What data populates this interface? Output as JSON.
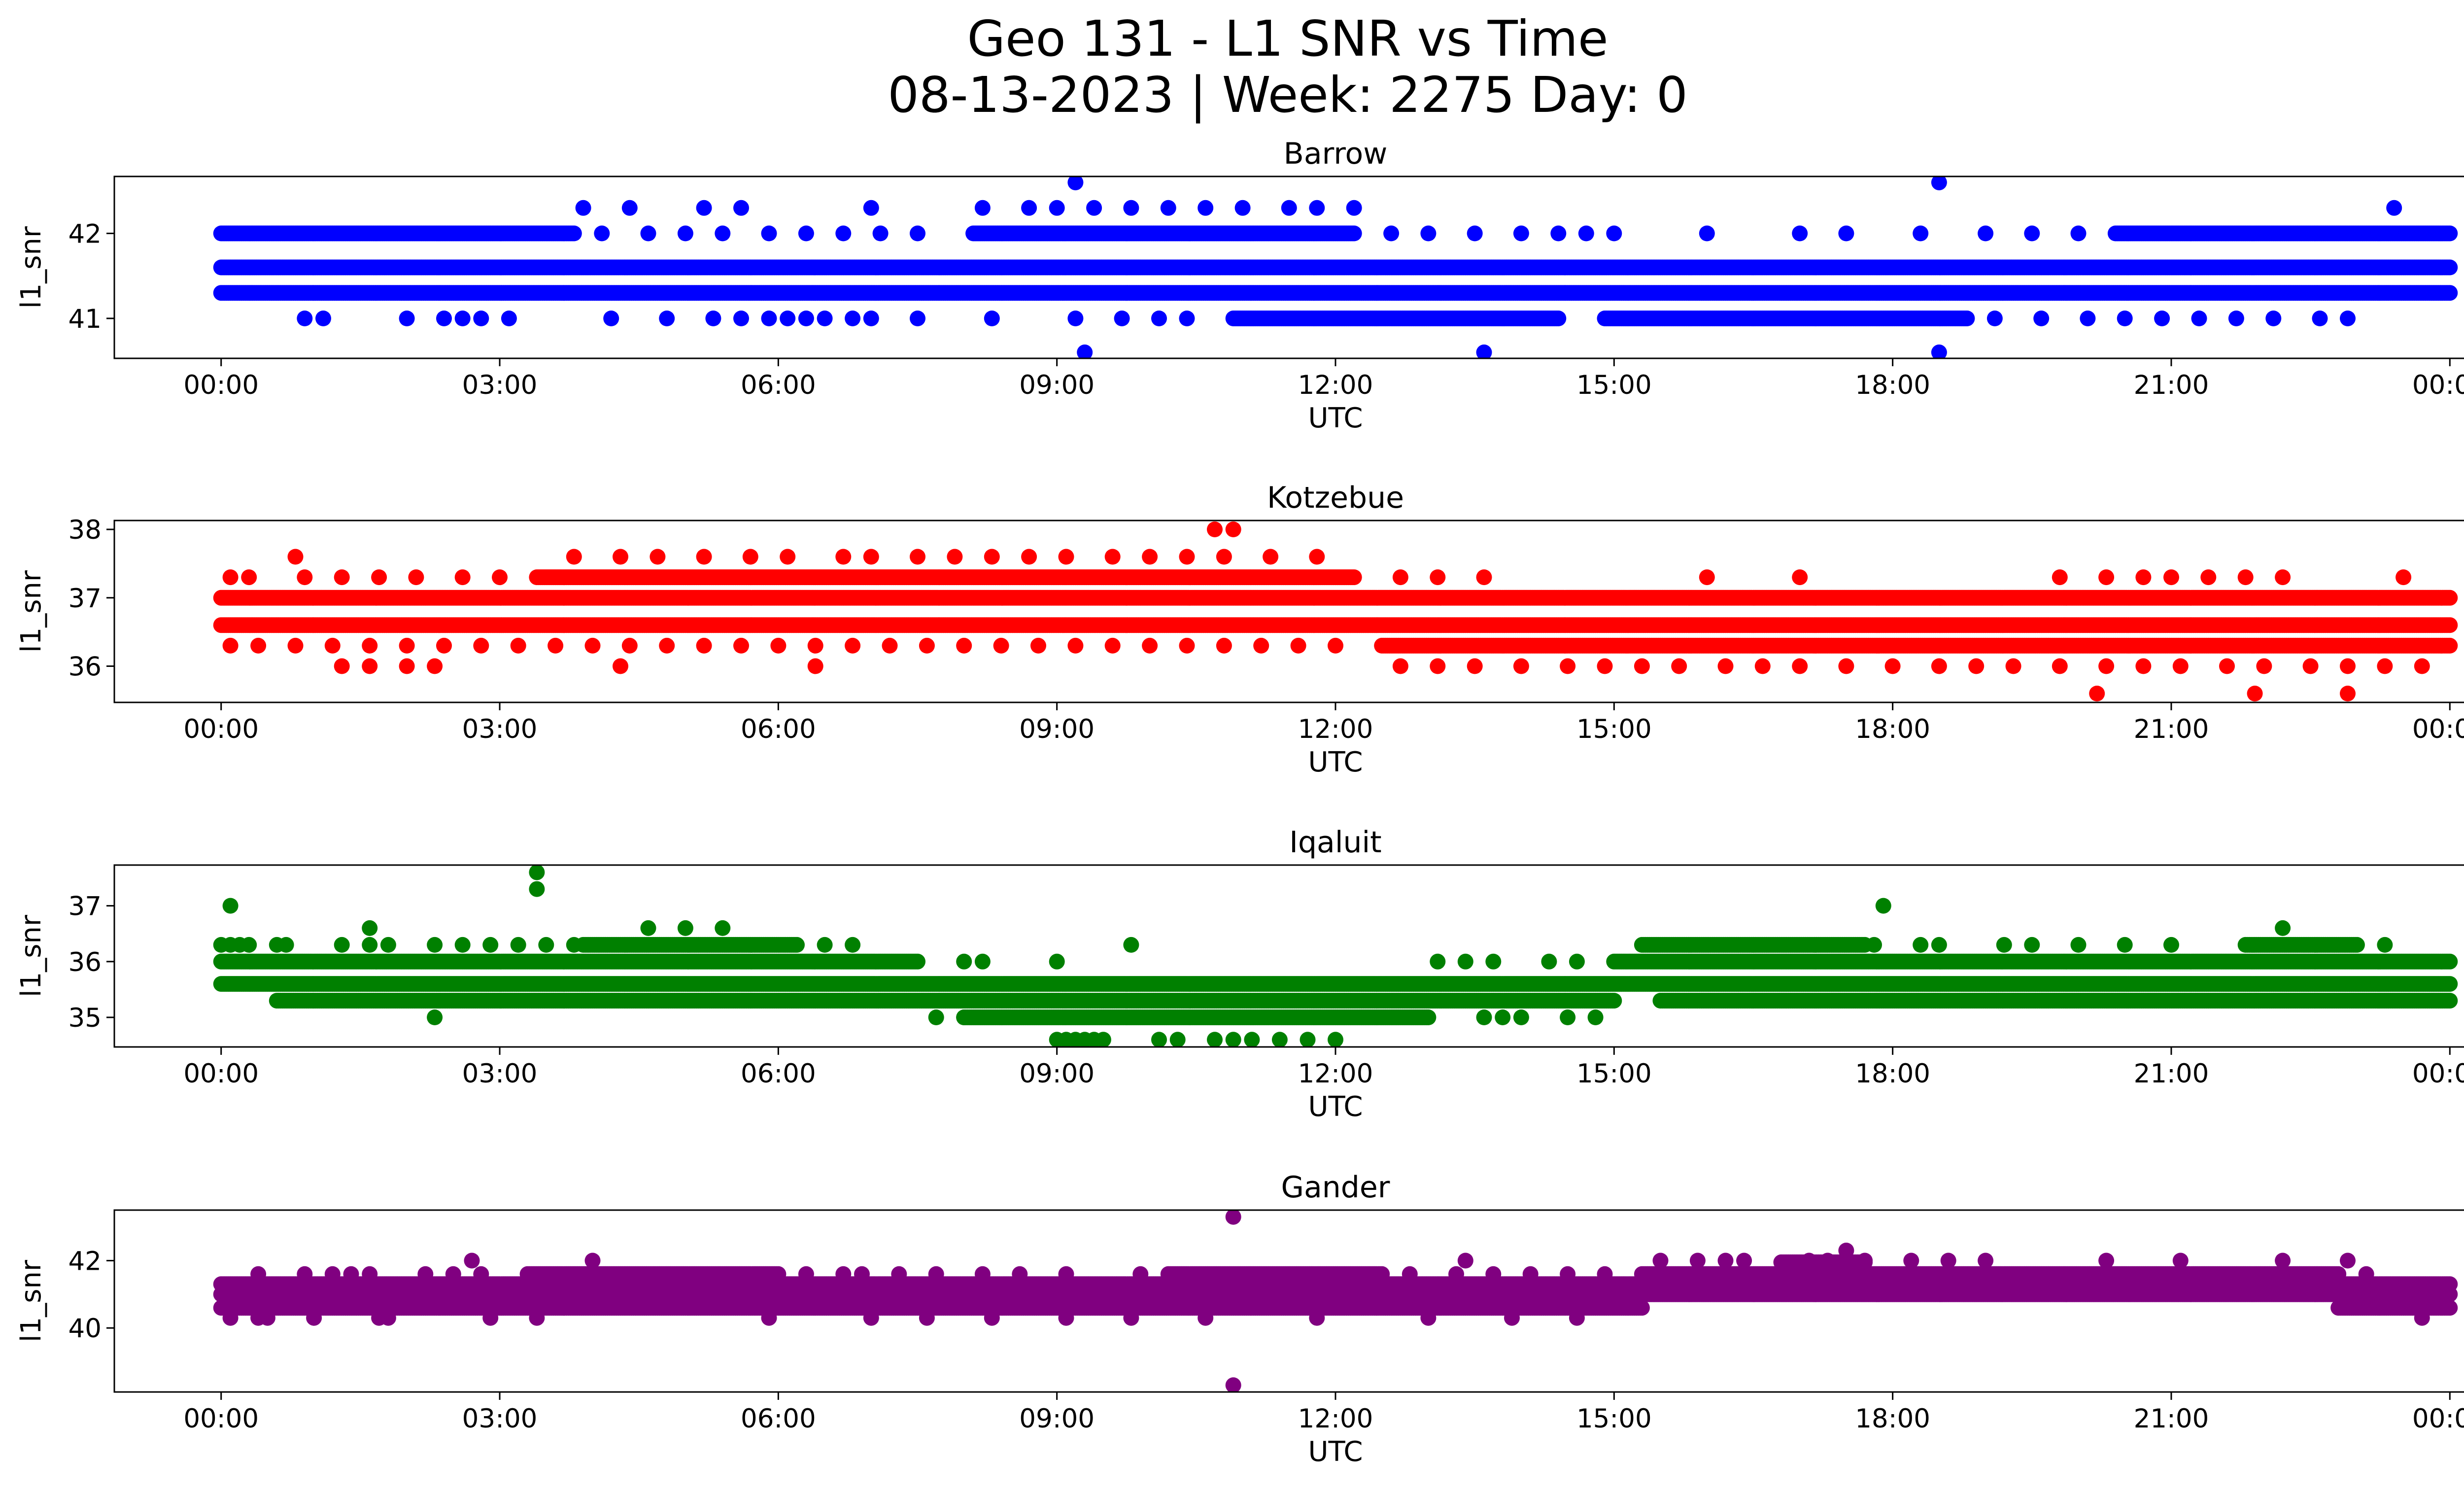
{
  "title": "Geo 131 - L1 SNR vs Time",
  "subtitle": "08-13-2023 | Week: 2275 Day: 0",
  "chart_data": [
    {
      "type": "scatter",
      "title": "Barrow",
      "xlabel": "UTC",
      "ylabel": "l1_snr",
      "color": "#0000ff",
      "xticks": [
        "00:00",
        "03:00",
        "06:00",
        "09:00",
        "12:00",
        "15:00",
        "18:00",
        "21:00",
        "00:00"
      ],
      "xlim_hours": [
        -1.15,
        25.15
      ],
      "ylim": [
        40.53,
        42.67
      ],
      "yticks": [
        41,
        42
      ],
      "levels": [
        40.6,
        41.0,
        41.3,
        41.6,
        42.0,
        42.3,
        42.6
      ],
      "bands": [
        {
          "y": 41.6,
          "ranges": [
            [
              0,
              24
            ]
          ]
        },
        {
          "y": 41.3,
          "ranges": [
            [
              0,
              24
            ]
          ]
        },
        {
          "y": 42.0,
          "ranges": [
            [
              0,
              3.8
            ],
            [
              8.1,
              12.2
            ],
            [
              20.4,
              24
            ]
          ]
        },
        {
          "y": 41.0,
          "ranges": [
            [
              10.9,
              14.4
            ],
            [
              14.9,
              18.8
            ]
          ]
        }
      ],
      "scatter": [
        {
          "y": 42.0,
          "x": [
            4.1,
            4.6,
            5.0,
            5.4,
            5.9,
            6.3,
            6.7,
            7.1,
            7.5,
            12.6,
            13.0,
            13.5,
            14.0,
            14.4,
            14.7,
            15.0,
            16.0,
            17.0,
            17.5,
            18.3,
            19.0,
            19.5,
            20.0
          ]
        },
        {
          "y": 41.0,
          "x": [
            0.9,
            1.1,
            2.0,
            2.4,
            2.6,
            2.8,
            3.1,
            4.2,
            4.8,
            5.3,
            5.6,
            5.9,
            6.1,
            6.3,
            6.5,
            6.8,
            7.0,
            7.5,
            8.3,
            9.2,
            9.7,
            10.1,
            10.4,
            19.1,
            19.6,
            20.1,
            20.5,
            20.9,
            21.3,
            21.7,
            22.1,
            22.6,
            22.9
          ]
        },
        {
          "y": 42.3,
          "x": [
            3.9,
            4.4,
            5.2,
            5.6,
            7.0,
            8.2,
            8.7,
            9.0,
            9.4,
            9.8,
            10.2,
            10.6,
            11.0,
            11.5,
            11.8,
            12.2,
            23.4
          ]
        },
        {
          "y": 42.6,
          "x": [
            9.2,
            18.5
          ]
        },
        {
          "y": 40.6,
          "x": [
            9.3,
            13.6,
            18.5
          ]
        }
      ]
    },
    {
      "type": "scatter",
      "title": "Kotzebue",
      "xlabel": "UTC",
      "ylabel": "l1_snr",
      "color": "#ff0000",
      "xticks": [
        "00:00",
        "03:00",
        "06:00",
        "09:00",
        "12:00",
        "15:00",
        "18:00",
        "21:00",
        "00:00"
      ],
      "xlim_hours": [
        -1.15,
        25.15
      ],
      "ylim": [
        35.47,
        38.13
      ],
      "yticks": [
        36,
        37,
        38
      ],
      "levels": [
        35.6,
        36.0,
        36.3,
        36.6,
        37.0,
        37.3,
        37.6,
        38.0
      ],
      "bands": [
        {
          "y": 37.0,
          "ranges": [
            [
              0,
              24
            ]
          ]
        },
        {
          "y": 36.6,
          "ranges": [
            [
              0,
              24
            ]
          ]
        },
        {
          "y": 36.3,
          "ranges": [
            [
              12.5,
              24
            ]
          ]
        },
        {
          "y": 37.3,
          "ranges": [
            [
              3.4,
              12.2
            ]
          ]
        }
      ],
      "scatter": [
        {
          "y": 36.3,
          "x": [
            0.1,
            0.4,
            0.8,
            1.2,
            1.6,
            2.0,
            2.4,
            2.8,
            3.2,
            3.6,
            4.0,
            4.4,
            4.8,
            5.2,
            5.6,
            6.0,
            6.4,
            6.8,
            7.2,
            7.6,
            8.0,
            8.4,
            8.8,
            9.2,
            9.6,
            10.0,
            10.4,
            10.8,
            11.2,
            11.6,
            12.0
          ]
        },
        {
          "y": 36.0,
          "x": [
            1.3,
            1.6,
            2.0,
            2.3,
            4.3,
            6.4,
            12.7,
            13.1,
            13.5,
            14.0,
            14.5,
            14.9,
            15.3,
            15.7,
            16.2,
            16.6,
            17.0,
            17.5,
            18.0,
            18.5,
            18.9,
            19.3,
            19.8,
            20.3,
            20.7,
            21.1,
            21.6,
            22.0,
            22.5,
            22.9,
            23.3,
            23.7
          ]
        },
        {
          "y": 37.3,
          "x": [
            0.1,
            0.3,
            0.9,
            1.3,
            1.7,
            2.1,
            2.6,
            3.0,
            12.7,
            13.1,
            13.6,
            16.0,
            17.0,
            19.8,
            20.3,
            20.7,
            21.0,
            21.4,
            21.8,
            22.2,
            23.5
          ]
        },
        {
          "y": 37.6,
          "x": [
            0.8,
            3.8,
            4.3,
            4.7,
            5.2,
            5.7,
            6.1,
            6.7,
            7.0,
            7.5,
            7.9,
            8.3,
            8.7,
            9.1,
            9.6,
            10.0,
            10.4,
            10.8,
            11.3,
            11.8
          ]
        },
        {
          "y": 38.0,
          "x": [
            10.7,
            10.9
          ]
        },
        {
          "y": 35.6,
          "x": [
            20.2,
            21.9,
            22.9
          ]
        }
      ]
    },
    {
      "type": "scatter",
      "title": "Iqaluit",
      "xlabel": "UTC",
      "ylabel": "l1_snr",
      "color": "#008000",
      "xticks": [
        "00:00",
        "03:00",
        "06:00",
        "09:00",
        "12:00",
        "15:00",
        "18:00",
        "21:00",
        "00:00"
      ],
      "xlim_hours": [
        -1.15,
        25.15
      ],
      "ylim": [
        34.47,
        37.73
      ],
      "yticks": [
        35,
        36,
        37
      ],
      "levels": [
        34.6,
        35.0,
        35.3,
        35.6,
        36.0,
        36.3,
        36.6,
        37.0,
        37.3,
        37.6
      ],
      "bands": [
        {
          "y": 36.0,
          "ranges": [
            [
              0,
              7.5
            ],
            [
              15.0,
              24
            ]
          ]
        },
        {
          "y": 35.6,
          "ranges": [
            [
              0,
              24
            ]
          ]
        },
        {
          "y": 35.3,
          "ranges": [
            [
              0.6,
              15.0
            ],
            [
              15.5,
              24
            ]
          ]
        },
        {
          "y": 35.0,
          "ranges": [
            [
              8.0,
              13.0
            ]
          ]
        },
        {
          "y": 36.3,
          "ranges": [
            [
              3.9,
              6.2
            ],
            [
              15.3,
              17.7
            ],
            [
              21.8,
              23.0
            ]
          ]
        }
      ],
      "scatter": [
        {
          "y": 36.3,
          "x": [
            0.0,
            0.1,
            0.2,
            0.3,
            0.6,
            0.7,
            1.3,
            1.6,
            1.8,
            2.3,
            2.6,
            2.9,
            3.2,
            3.5,
            3.8,
            6.5,
            6.8,
            9.8,
            17.8,
            18.3,
            18.5,
            19.2,
            19.5,
            20.0,
            20.5,
            21.0,
            23.3
          ]
        },
        {
          "y": 35.6,
          "x": []
        },
        {
          "y": 35.0,
          "x": [
            2.3,
            7.7,
            8.0,
            13.6,
            13.8,
            14.0,
            14.5,
            14.8
          ]
        },
        {
          "y": 34.6,
          "x": [
            9.0,
            9.1,
            9.2,
            9.3,
            9.4,
            9.5,
            10.1,
            10.3,
            10.7,
            10.9,
            11.1,
            11.4,
            11.7,
            12.0
          ]
        },
        {
          "y": 36.0,
          "x": [
            13.1,
            13.4,
            13.7,
            14.3,
            14.6,
            8.0,
            8.2,
            9.0
          ]
        },
        {
          "y": 36.6,
          "x": [
            1.6,
            4.6,
            5.0,
            5.4,
            22.2
          ]
        },
        {
          "y": 37.0,
          "x": [
            0.1,
            17.9
          ]
        },
        {
          "y": 37.3,
          "x": [
            3.4
          ]
        },
        {
          "y": 37.6,
          "x": [
            3.4
          ]
        }
      ]
    },
    {
      "type": "scatter",
      "title": "Gander",
      "xlabel": "UTC",
      "ylabel": "l1_snr",
      "color": "#800080",
      "xticks": [
        "00:00",
        "03:00",
        "06:00",
        "09:00",
        "12:00",
        "15:00",
        "18:00",
        "21:00",
        "00:00"
      ],
      "xlim_hours": [
        -1.15,
        25.15
      ],
      "ylim": [
        38.1,
        43.5
      ],
      "yticks": [
        40,
        42
      ],
      "levels": [
        38.3,
        40.3,
        40.6,
        41.0,
        41.3,
        41.6,
        42.0,
        42.3,
        43.3
      ],
      "bands": [
        {
          "y": 41.3,
          "ranges": [
            [
              0,
              24
            ]
          ]
        },
        {
          "y": 41.0,
          "ranges": [
            [
              0,
              24
            ]
          ]
        },
        {
          "y": 40.6,
          "ranges": [
            [
              0,
              15.3
            ],
            [
              22.8,
              24
            ]
          ]
        },
        {
          "y": 41.6,
          "ranges": [
            [
              3.3,
              6.0
            ],
            [
              10.2,
              12.5
            ],
            [
              15.3,
              22.8
            ]
          ]
        },
        {
          "y": 41.95,
          "ranges": [
            [
              16.8,
              17.7
            ]
          ]
        }
      ],
      "scatter": [
        {
          "y": 40.3,
          "x": [
            0.1,
            0.4,
            0.5,
            1.0,
            1.7,
            1.8,
            2.9,
            3.4,
            5.9,
            7.0,
            7.6,
            8.3,
            9.1,
            9.8,
            10.6,
            11.8,
            13.0,
            13.9,
            14.6,
            23.7
          ]
        },
        {
          "y": 41.6,
          "x": [
            0.4,
            0.9,
            1.2,
            1.4,
            1.6,
            2.2,
            2.5,
            2.8,
            6.3,
            6.7,
            6.9,
            7.3,
            7.7,
            8.2,
            8.6,
            9.1,
            9.9,
            12.8,
            13.3,
            13.7,
            14.1,
            14.5,
            14.9,
            23.1
          ]
        },
        {
          "y": 42.0,
          "x": [
            2.7,
            4.0,
            13.4,
            15.5,
            15.9,
            16.2,
            16.4,
            17.1,
            17.3,
            17.7,
            18.2,
            18.6,
            19.0,
            20.3,
            21.1,
            22.2,
            22.9
          ]
        },
        {
          "y": 42.3,
          "x": [
            17.5
          ]
        },
        {
          "y": 43.3,
          "x": [
            10.9
          ]
        },
        {
          "y": 38.3,
          "x": [
            10.9
          ]
        }
      ]
    }
  ]
}
